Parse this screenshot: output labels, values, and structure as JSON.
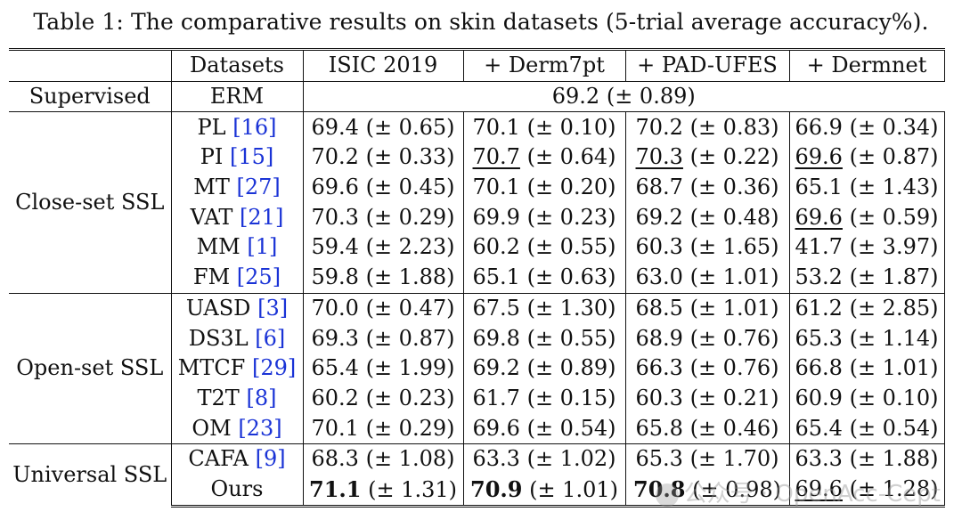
{
  "caption": "Table 1: The comparative results on skin datasets (5-trial average accuracy%).",
  "header": {
    "group_col": "",
    "datasets": "Datasets",
    "cols": [
      "ISIC 2019",
      "+ Derm7pt",
      "+ PAD-UFES",
      "+ Dermnet"
    ]
  },
  "supervised": {
    "group": "Supervised",
    "method": "ERM",
    "value": "69.2 (± 0.89)"
  },
  "groups": [
    {
      "name": "Close-set SSL",
      "rows": [
        {
          "method": "PL",
          "ref": "[16]",
          "vals": [
            [
              "69.4",
              " (± 0.65)"
            ],
            [
              "70.1",
              " (± 0.10)"
            ],
            [
              "70.2",
              " (± 0.83)"
            ],
            [
              "66.9",
              " (± 0.34)"
            ]
          ]
        },
        {
          "method": "PI",
          "ref": "[15]",
          "vals": [
            [
              "70.2",
              " (± 0.33)"
            ],
            [
              "70.7",
              " (± 0.64)"
            ],
            [
              "70.3",
              " (± 0.22)"
            ],
            [
              "69.6",
              " (± 0.87)"
            ]
          ]
        },
        {
          "method": "MT",
          "ref": "[27]",
          "vals": [
            [
              "69.6",
              " (± 0.45)"
            ],
            [
              "70.1",
              " (± 0.20)"
            ],
            [
              "68.7",
              " (± 0.36)"
            ],
            [
              "65.1",
              " (± 1.43)"
            ]
          ]
        },
        {
          "method": "VAT",
          "ref": "[21]",
          "vals": [
            [
              "70.3",
              " (± 0.29)"
            ],
            [
              "69.9",
              " (± 0.23)"
            ],
            [
              "69.2",
              " (± 0.48)"
            ],
            [
              "69.6",
              " (± 0.59)"
            ]
          ]
        },
        {
          "method": "MM",
          "ref": "[1]",
          "vals": [
            [
              "59.4",
              " (± 2.23)"
            ],
            [
              "60.2",
              " (± 0.55)"
            ],
            [
              "60.3",
              " (± 1.65)"
            ],
            [
              "41.7",
              " (± 3.97)"
            ]
          ]
        },
        {
          "method": "FM",
          "ref": "[25]",
          "vals": [
            [
              "59.8",
              " (± 1.88)"
            ],
            [
              "65.1",
              " (± 0.63)"
            ],
            [
              "63.0",
              " (± 1.01)"
            ],
            [
              "53.2",
              " (± 1.87)"
            ]
          ]
        }
      ]
    },
    {
      "name": "Open-set SSL",
      "rows": [
        {
          "method": "UASD",
          "ref": "[3]",
          "vals": [
            [
              "70.0",
              " (± 0.47)"
            ],
            [
              "67.5",
              " (± 1.30)"
            ],
            [
              "68.5",
              " (± 1.01)"
            ],
            [
              "61.2",
              " (± 2.85)"
            ]
          ]
        },
        {
          "method": "DS3L",
          "ref": "[6]",
          "vals": [
            [
              "69.3",
              " (± 0.87)"
            ],
            [
              "69.8",
              " (± 0.55)"
            ],
            [
              "68.9",
              " (± 0.76)"
            ],
            [
              "65.3",
              " (± 1.14)"
            ]
          ]
        },
        {
          "method": "MTCF",
          "ref": "[29]",
          "vals": [
            [
              "65.4",
              " (± 1.99)"
            ],
            [
              "69.2",
              " (± 0.89)"
            ],
            [
              "66.3",
              " (± 0.76)"
            ],
            [
              "66.8",
              " (± 1.01)"
            ]
          ]
        },
        {
          "method": "T2T",
          "ref": "[8]",
          "vals": [
            [
              "60.2",
              " (± 0.23)"
            ],
            [
              "61.7",
              " (± 0.15)"
            ],
            [
              "60.3",
              " (± 0.21)"
            ],
            [
              "60.9",
              " (± 0.10)"
            ]
          ]
        },
        {
          "method": "OM",
          "ref": "[23]",
          "vals": [
            [
              "70.1",
              " (± 0.29)"
            ],
            [
              "69.6",
              " (± 0.54)"
            ],
            [
              "65.8",
              " (± 0.46)"
            ],
            [
              "65.4",
              " (± 0.54)"
            ]
          ]
        }
      ]
    },
    {
      "name": "Universal SSL",
      "rows": [
        {
          "method": "CAFA",
          "ref": "[9]",
          "vals": [
            [
              "68.3",
              " (± 1.08)"
            ],
            [
              "63.3",
              " (± 1.02)"
            ],
            [
              "65.3",
              " (± 1.70)"
            ],
            [
              "63.3",
              " (± 1.88)"
            ]
          ]
        },
        {
          "method": "Ours",
          "ref": "",
          "vals": [
            [
              "71.1",
              " (± 1.31)"
            ],
            [
              "70.9",
              " (± 1.01)"
            ],
            [
              "70.8",
              " (± 0.98)"
            ],
            [
              "69.6",
              " (± 1.28)"
            ]
          ]
        }
      ]
    }
  ],
  "bold_cells": [
    [
      2,
      1,
      0
    ],
    [
      2,
      1,
      1
    ],
    [
      2,
      1,
      2
    ]
  ],
  "underline_cells": [
    [
      0,
      1,
      1
    ],
    [
      0,
      1,
      2
    ],
    [
      0,
      1,
      3
    ],
    [
      0,
      3,
      3
    ],
    [
      2,
      1,
      3
    ]
  ],
  "watermark": "公众号 · OpenAcc-Cept"
}
